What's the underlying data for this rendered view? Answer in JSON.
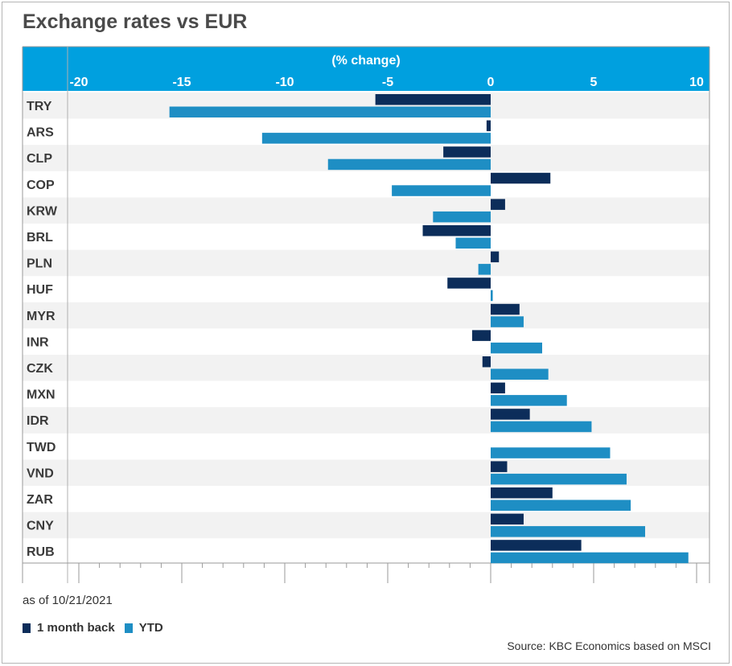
{
  "title": "Exchange rates vs EUR",
  "footnote": "as of 10/21/2021",
  "source": "Source: KBC Economics based on MSCI",
  "colors": {
    "header_bg": "#00a0df",
    "series_1m": "#0c2d5a",
    "series_ytd": "#1e8ec4",
    "stripe": "#f2f2f2"
  },
  "chart_data": {
    "type": "bar",
    "orientation": "horizontal",
    "axis_title": "(% change)",
    "xlim": [
      -20,
      10
    ],
    "x_ticks": [
      -20,
      -15,
      -10,
      -5,
      0,
      5,
      10
    ],
    "categories": [
      "TRY",
      "ARS",
      "CLP",
      "COP",
      "KRW",
      "BRL",
      "PLN",
      "HUF",
      "MYR",
      "INR",
      "CZK",
      "MXN",
      "IDR",
      "TWD",
      "VND",
      "ZAR",
      "CNY",
      "RUB"
    ],
    "series": [
      {
        "name": "1 month back",
        "values": [
          -5.6,
          -0.2,
          -2.3,
          2.9,
          0.7,
          -3.3,
          0.4,
          -2.1,
          1.4,
          -0.9,
          -0.4,
          0.7,
          1.9,
          0.0,
          0.8,
          3.0,
          1.6,
          4.4
        ]
      },
      {
        "name": "YTD",
        "values": [
          -15.6,
          -11.1,
          -7.9,
          -4.8,
          -2.8,
          -1.7,
          -0.6,
          0.1,
          1.6,
          2.5,
          2.8,
          3.7,
          4.9,
          5.8,
          6.6,
          6.8,
          7.5,
          9.6
        ]
      }
    ],
    "grid": true,
    "legend_position": "bottom-left"
  }
}
